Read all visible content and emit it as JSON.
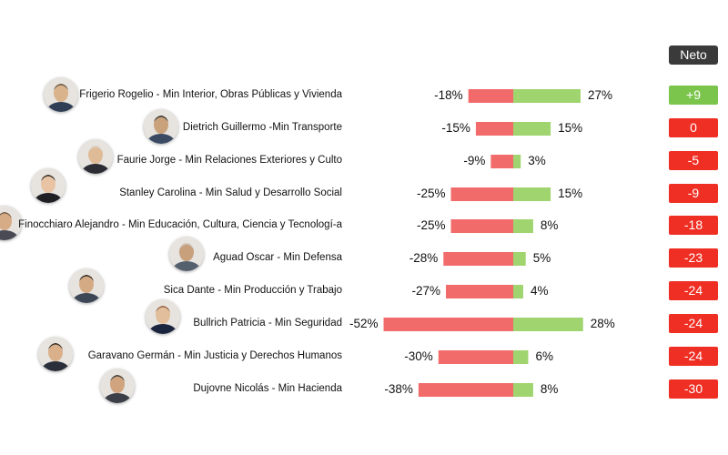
{
  "header": {
    "neto_label": "Neto"
  },
  "colors": {
    "negative": "#f26b6b",
    "positive": "#9fd46e",
    "net_positive": "#7cc54d",
    "net_negative": "#ef2f24",
    "header_bg": "#3a3a3a"
  },
  "chart_data": {
    "type": "bar",
    "categories": [
      "Frigerio Rogelio - Min Interior, Obras Públicas y Vivienda",
      "Dietrich Guillermo -Min Transporte",
      "Faurie Jorge - Min Relaciones Exteriores y Culto",
      "Stanley Carolina - Min Salud y Desarrollo Social",
      "Finocchiaro Alejandro - Min Educación, Cultura, Ciencia y Tecnologí-a",
      "Aguad Oscar - Min Defensa",
      "Sica Dante - Min Producción y Trabajo",
      "Bullrich Patricia - Min Seguridad",
      "Garavano Germán - Min Justicia y Derechos Humanos",
      "Dujovne Nicolás - Min Hacienda"
    ],
    "series": [
      {
        "values": [
          -18,
          -15,
          -9,
          -25,
          -25,
          -28,
          -27,
          -52,
          -30,
          -38
        ]
      },
      {
        "values": [
          27,
          15,
          3,
          15,
          8,
          5,
          4,
          28,
          6,
          8
        ]
      }
    ],
    "negative_labels": [
      "-18%",
      "-15%",
      "-9%",
      "-25%",
      "-25%",
      "-28%",
      "-27%",
      "-52%",
      "-30%",
      "-38%"
    ],
    "positive_labels": [
      "27%",
      "15%",
      "3%",
      "15%",
      "8%",
      "5%",
      "4%",
      "28%",
      "6%",
      "8%"
    ],
    "net_values": [
      9,
      0,
      -5,
      -9,
      -18,
      -23,
      -24,
      -24,
      -24,
      -30
    ],
    "net_labels": [
      "+9",
      "0",
      "-5",
      "-9",
      "-18",
      "-23",
      "-24",
      "-24",
      "-24",
      "-30"
    ],
    "title": "",
    "xlabel": "",
    "ylabel": "",
    "grid": false
  }
}
